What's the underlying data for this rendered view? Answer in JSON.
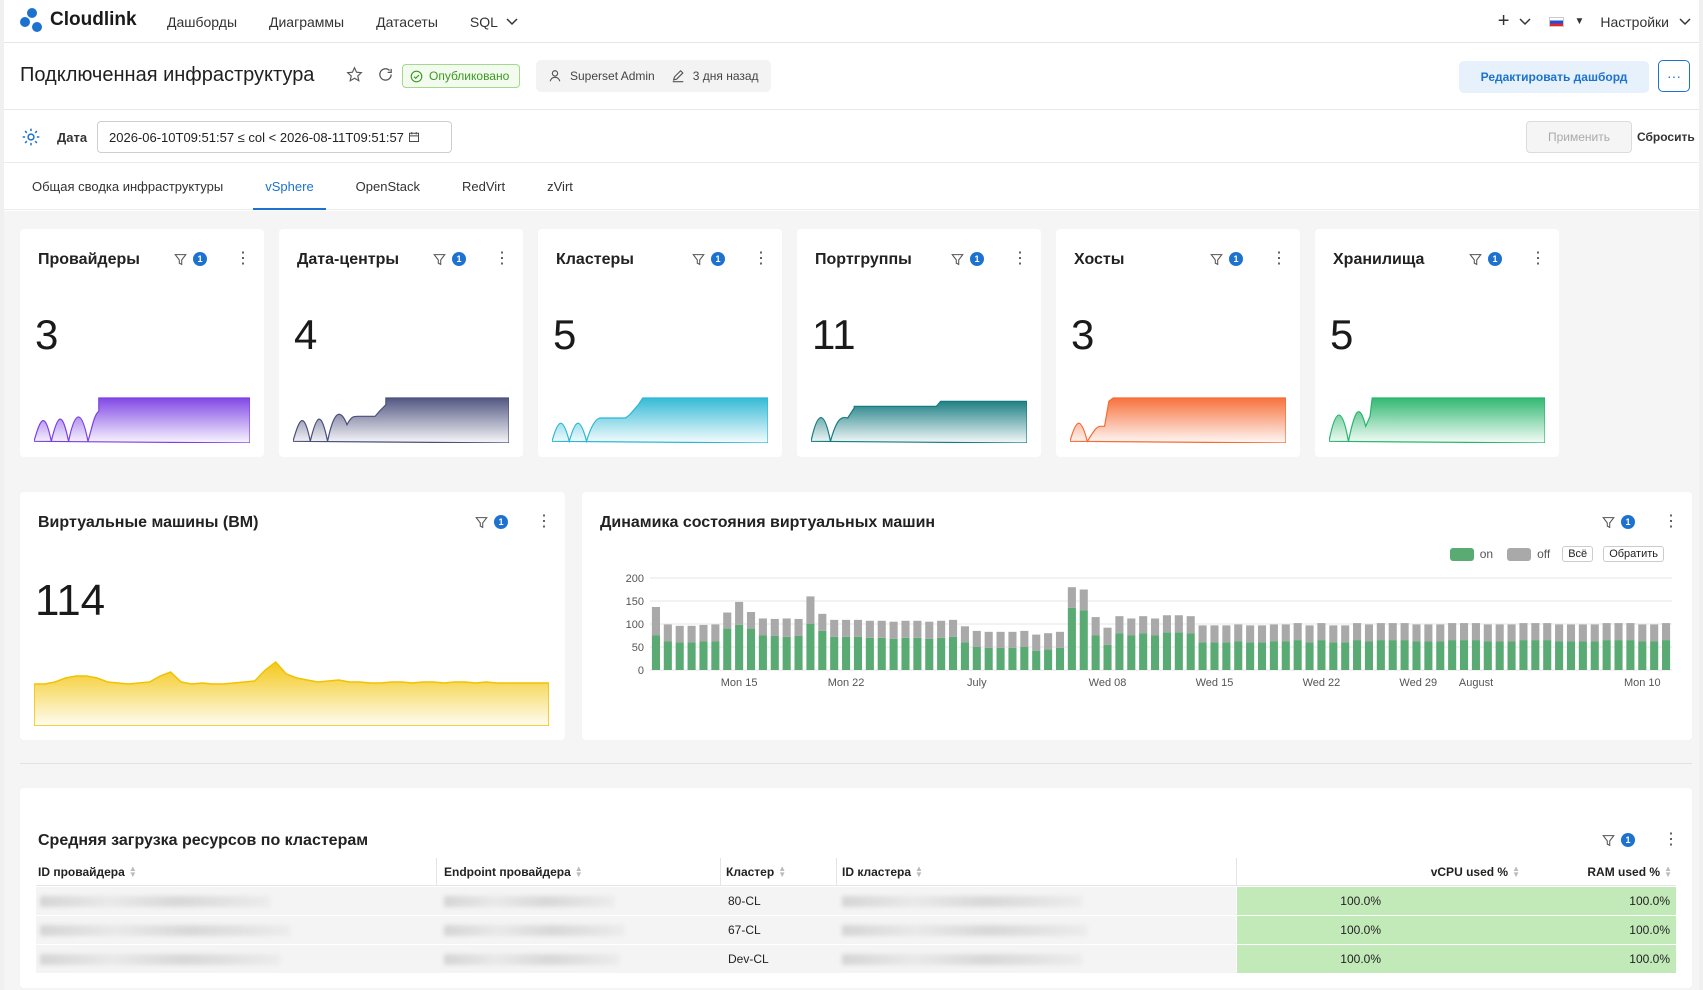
{
  "app": {
    "logo_text": "Cloudlink",
    "nav": [
      "Дашборды",
      "Диаграммы",
      "Датасеты"
    ],
    "sql_label": "SQL",
    "plus_label": "+",
    "settings_label": "Настройки"
  },
  "header": {
    "title": "Подключенная инфраструктура",
    "status": "Опубликовано",
    "owner": "Superset Admin",
    "modified": "3 дня назад",
    "edit_label": "Редактировать дашборд",
    "more_label": "···"
  },
  "filters": {
    "label": "Дата",
    "value": "2026-06-10T09:51:57 ≤ col < 2026-08-11T09:51:57",
    "apply_label": "Применить",
    "reset_label": "Сбросить"
  },
  "tabs": [
    {
      "label": "Общая сводка инфраструктуры",
      "active": false
    },
    {
      "label": "vSphere",
      "active": true
    },
    {
      "label": "OpenStack",
      "active": false
    },
    {
      "label": "RedVirt",
      "active": false
    },
    {
      "label": "zVirt",
      "active": false
    }
  ],
  "filter_badge": "1",
  "kpis": [
    {
      "title": "Провайдеры",
      "value": "3",
      "color": "#7b3fe4"
    },
    {
      "title": "Дата-центры",
      "value": "4",
      "color": "#4a4f7c"
    },
    {
      "title": "Кластеры",
      "value": "5",
      "color": "#2bb7d4"
    },
    {
      "title": "Портгруппы",
      "value": "11",
      "color": "#137a7f"
    },
    {
      "title": "Хосты",
      "value": "3",
      "color": "#f66a33"
    },
    {
      "title": "Хранилища",
      "value": "5",
      "color": "#27b56b"
    }
  ],
  "vm_card": {
    "title": "Виртуальные машины (ВМ)",
    "value": "114",
    "color": "#f2c200"
  },
  "dynamics": {
    "title": "Динамика состояния виртуальных машин",
    "legend": {
      "on": "on",
      "off": "off",
      "all": "Всё",
      "invert": "Обратить"
    },
    "colors": {
      "on": "#5aaa73",
      "off": "#a9a9a9"
    }
  },
  "chart_data": {
    "type": "bar",
    "stacked": true,
    "title": "Динамика состояния виртуальных машин",
    "xlabel": "",
    "ylabel": "",
    "ylim": [
      0,
      200
    ],
    "yticks": [
      0,
      50,
      100,
      150,
      200
    ],
    "xtick_labels": [
      "Mon 15",
      "Mon 22",
      "July",
      "Wed 08",
      "Wed 15",
      "Wed 22",
      "Wed 29",
      "August",
      "Mon 10"
    ],
    "series": [
      {
        "name": "on",
        "values": [
          75,
          62,
          60,
          60,
          62,
          62,
          90,
          98,
          90,
          75,
          74,
          72,
          74,
          100,
          85,
          72,
          72,
          72,
          70,
          70,
          68,
          70,
          70,
          68,
          70,
          72,
          60,
          50,
          48,
          48,
          48,
          50,
          42,
          45,
          48,
          135,
          130,
          75,
          55,
          80,
          75,
          80,
          75,
          82,
          82,
          80,
          60,
          60,
          60,
          62,
          60,
          60,
          62,
          62,
          65,
          60,
          65,
          60,
          60,
          65,
          62,
          65,
          65,
          65,
          62,
          62,
          62,
          65,
          65,
          65,
          62,
          62,
          62,
          65,
          65,
          65,
          62,
          62,
          62,
          62,
          65,
          65,
          65,
          62,
          62,
          65
        ]
      },
      {
        "name": "off",
        "values": [
          62,
          37,
          36,
          36,
          36,
          37,
          35,
          50,
          36,
          37,
          37,
          40,
          37,
          60,
          37,
          37,
          37,
          37,
          37,
          37,
          37,
          37,
          37,
          37,
          37,
          37,
          35,
          35,
          35,
          35,
          35,
          35,
          35,
          35,
          35,
          45,
          45,
          40,
          37,
          37,
          37,
          37,
          37,
          37,
          37,
          37,
          37,
          37,
          37,
          37,
          37,
          37,
          37,
          37,
          37,
          37,
          37,
          37,
          37,
          37,
          37,
          37,
          37,
          37,
          37,
          37,
          37,
          37,
          37,
          37,
          37,
          37,
          37,
          37,
          37,
          37,
          37,
          37,
          37,
          37,
          37,
          37,
          37,
          37,
          37,
          37
        ]
      }
    ]
  },
  "table": {
    "title": "Средняя загрузка ресурсов по кластерам",
    "columns": [
      "ID провайдера",
      "Endpoint провайдера",
      "Кластер",
      "ID кластера",
      "vCPU used %",
      "RAM used %"
    ],
    "rows": [
      {
        "cluster": "80-CL",
        "vcpu": "100.0%",
        "ram": "100.0%"
      },
      {
        "cluster": "67-CL",
        "vcpu": "100.0%",
        "ram": "100.0%"
      },
      {
        "cluster": "Dev-CL",
        "vcpu": "100.0%",
        "ram": "100.0%"
      }
    ],
    "highlight_color": "#c2eab8"
  }
}
